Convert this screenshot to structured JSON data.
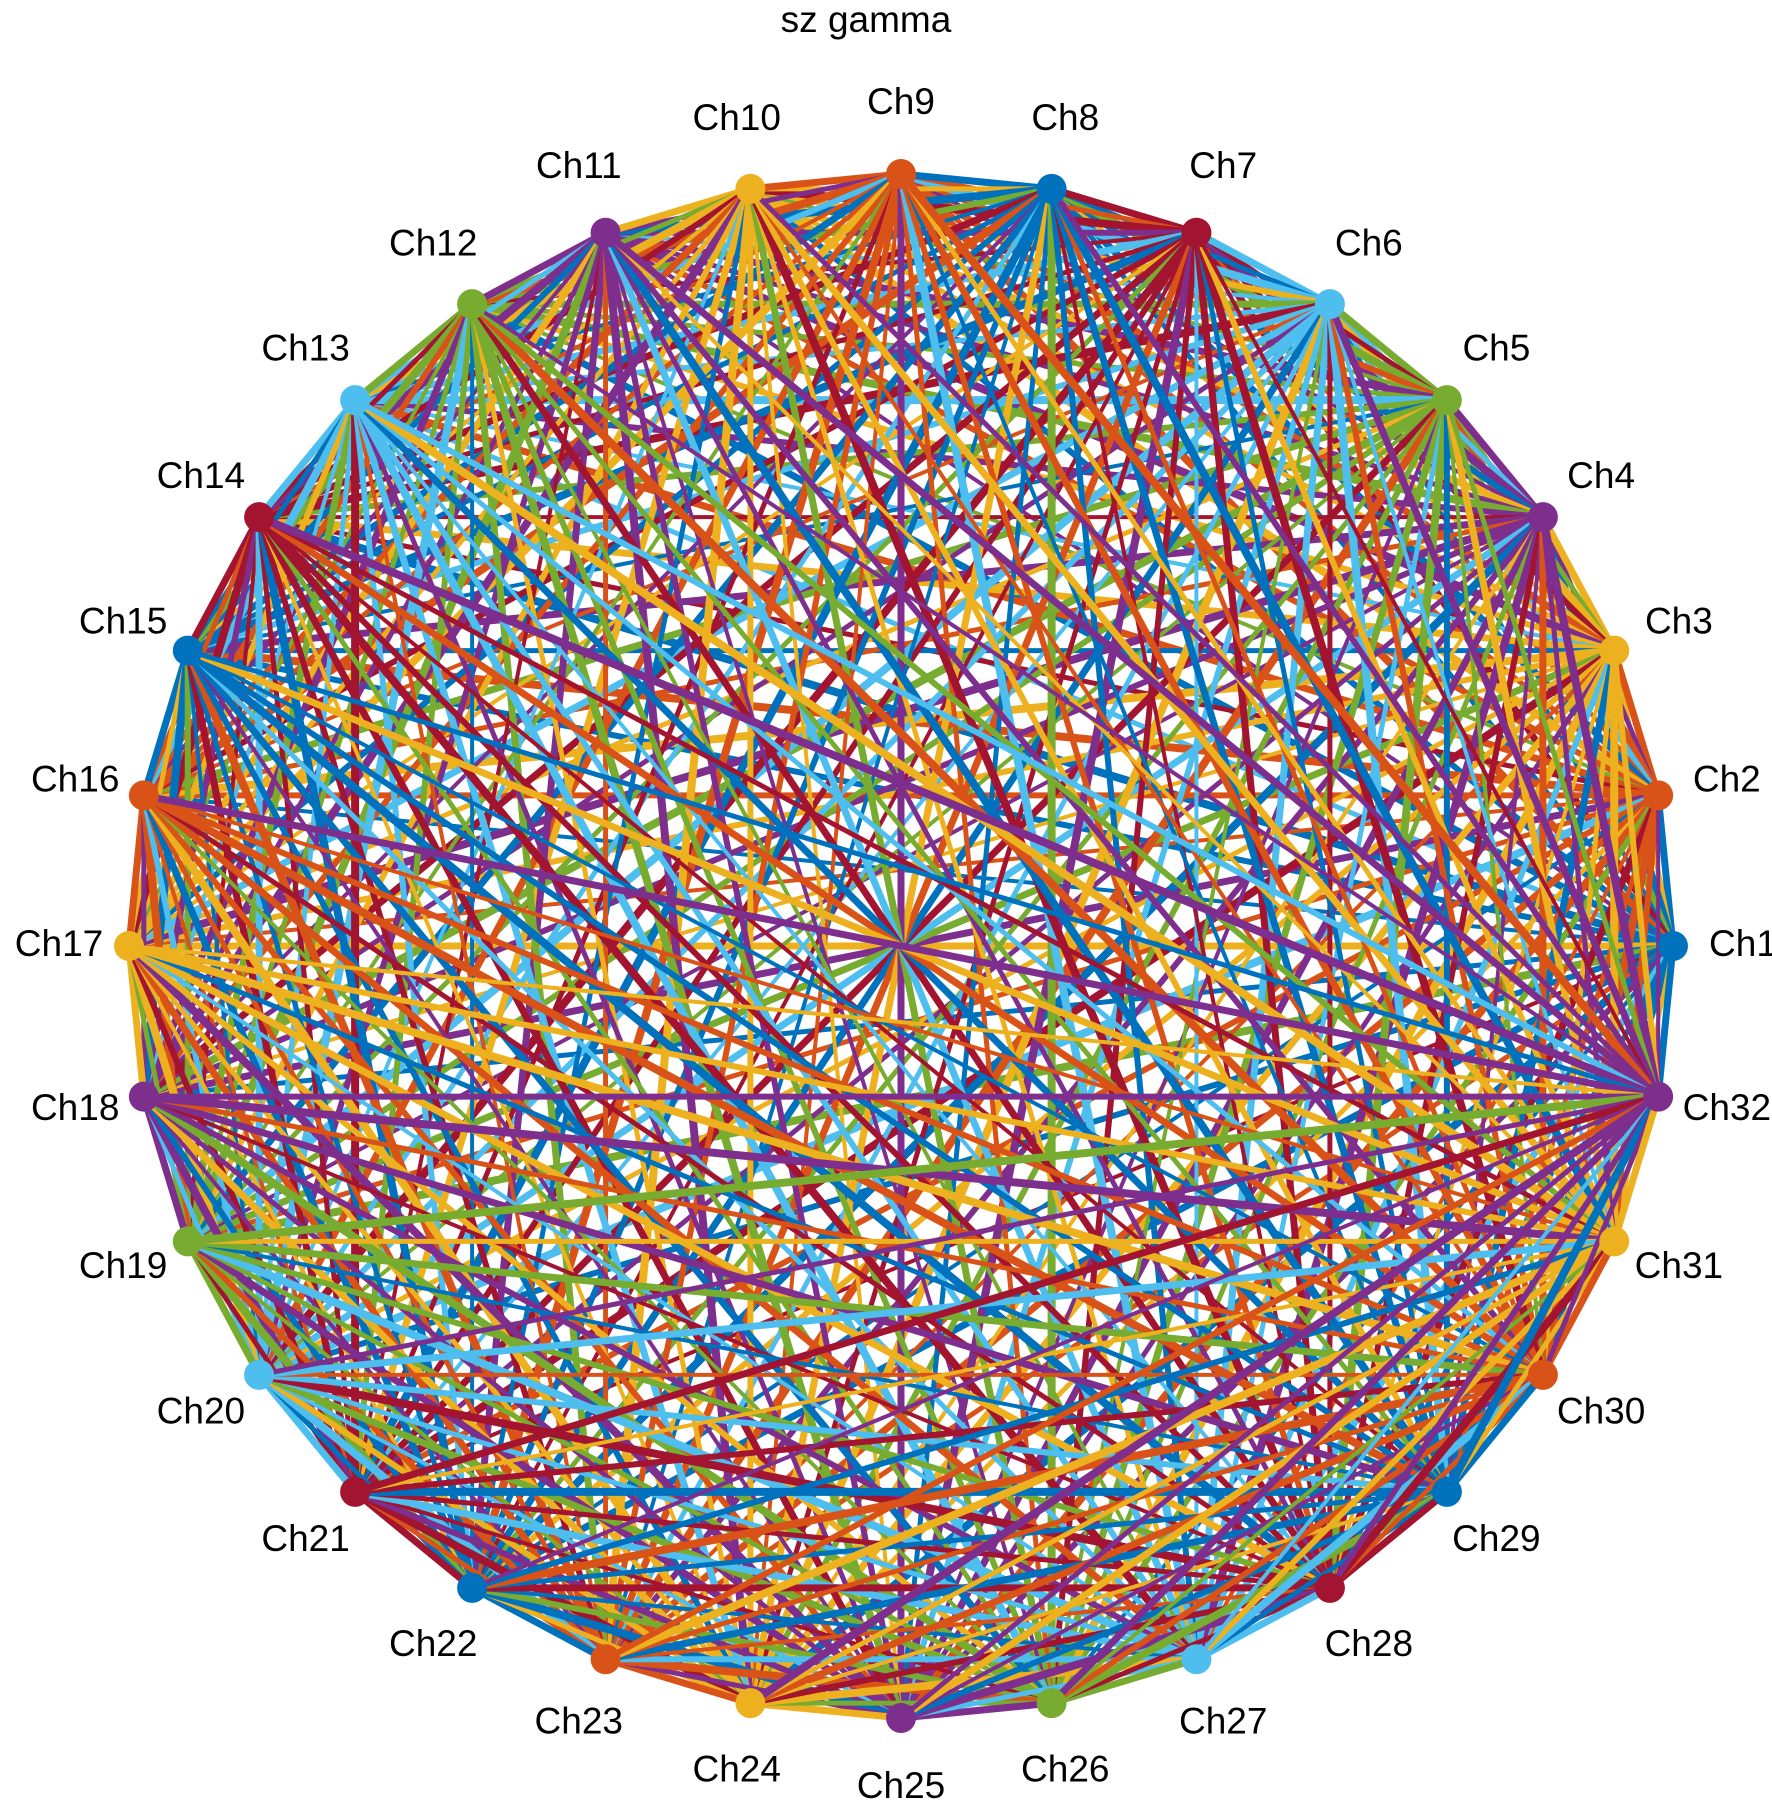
{
  "title": "sz gamma",
  "nodes": [
    {
      "label": "Ch1",
      "color": "#0072bd"
    },
    {
      "label": "Ch2",
      "color": "#d95319"
    },
    {
      "label": "Ch3",
      "color": "#edb120"
    },
    {
      "label": "Ch4",
      "color": "#7e2f8e"
    },
    {
      "label": "Ch5",
      "color": "#77ac30"
    },
    {
      "label": "Ch6",
      "color": "#4dbeee"
    },
    {
      "label": "Ch7",
      "color": "#a2142f"
    },
    {
      "label": "Ch8",
      "color": "#0072bd"
    },
    {
      "label": "Ch9",
      "color": "#d95319"
    },
    {
      "label": "Ch10",
      "color": "#edb120"
    },
    {
      "label": "Ch11",
      "color": "#7e2f8e"
    },
    {
      "label": "Ch12",
      "color": "#77ac30"
    },
    {
      "label": "Ch13",
      "color": "#4dbeee"
    },
    {
      "label": "Ch14",
      "color": "#a2142f"
    },
    {
      "label": "Ch15",
      "color": "#0072bd"
    },
    {
      "label": "Ch16",
      "color": "#d95319"
    },
    {
      "label": "Ch17",
      "color": "#edb120"
    },
    {
      "label": "Ch18",
      "color": "#7e2f8e"
    },
    {
      "label": "Ch19",
      "color": "#77ac30"
    },
    {
      "label": "Ch20",
      "color": "#4dbeee"
    },
    {
      "label": "Ch21",
      "color": "#a2142f"
    },
    {
      "label": "Ch22",
      "color": "#0072bd"
    },
    {
      "label": "Ch23",
      "color": "#d95319"
    },
    {
      "label": "Ch24",
      "color": "#edb120"
    },
    {
      "label": "Ch25",
      "color": "#7e2f8e"
    },
    {
      "label": "Ch26",
      "color": "#77ac30"
    },
    {
      "label": "Ch27",
      "color": "#4dbeee"
    },
    {
      "label": "Ch28",
      "color": "#a2142f"
    },
    {
      "label": "Ch29",
      "color": "#0072bd"
    },
    {
      "label": "Ch30",
      "color": "#d95319"
    },
    {
      "label": "Ch31",
      "color": "#edb120"
    },
    {
      "label": "Ch32",
      "color": "#7e2f8e"
    }
  ]
}
